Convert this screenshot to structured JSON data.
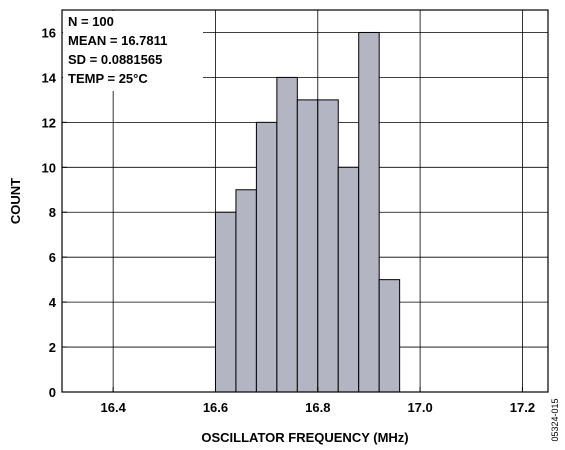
{
  "chart_data": {
    "type": "bar",
    "title": "",
    "xlabel": "OSCILLATOR FREQUENCY (MHz)",
    "ylabel": "COUNT",
    "xlim": [
      16.3,
      17.25
    ],
    "ylim": [
      0,
      17
    ],
    "xticks": [
      16.4,
      16.6,
      16.8,
      17.0,
      17.2
    ],
    "xtick_labels": [
      "16.4",
      "16.6",
      "16.8",
      "17.0",
      "17.2"
    ],
    "yticks": [
      0,
      2,
      4,
      6,
      8,
      10,
      12,
      14,
      16
    ],
    "yticks_labels": [
      "0",
      "2",
      "4",
      "6",
      "8",
      "10",
      "12",
      "14",
      "16"
    ],
    "grid": true,
    "bin_width": 0.04,
    "bins": [
      {
        "start": 16.6,
        "end": 16.64,
        "count": 8
      },
      {
        "start": 16.64,
        "end": 16.68,
        "count": 9
      },
      {
        "start": 16.68,
        "end": 16.72,
        "count": 12
      },
      {
        "start": 16.72,
        "end": 16.76,
        "count": 14
      },
      {
        "start": 16.76,
        "end": 16.8,
        "count": 13
      },
      {
        "start": 16.8,
        "end": 16.84,
        "count": 13
      },
      {
        "start": 16.84,
        "end": 16.88,
        "count": 10
      },
      {
        "start": 16.88,
        "end": 16.92,
        "count": 16
      },
      {
        "start": 16.92,
        "end": 16.96,
        "count": 5
      }
    ],
    "annotations": [
      "N = 100",
      "MEAN = 16.7811",
      "SD = 0.0881565",
      "TEMP = 25°C"
    ],
    "bar_color": "#b3b6c2",
    "bar_edge_color": "#000000",
    "grid_color": "#000000"
  },
  "figure_id": "05324-015"
}
